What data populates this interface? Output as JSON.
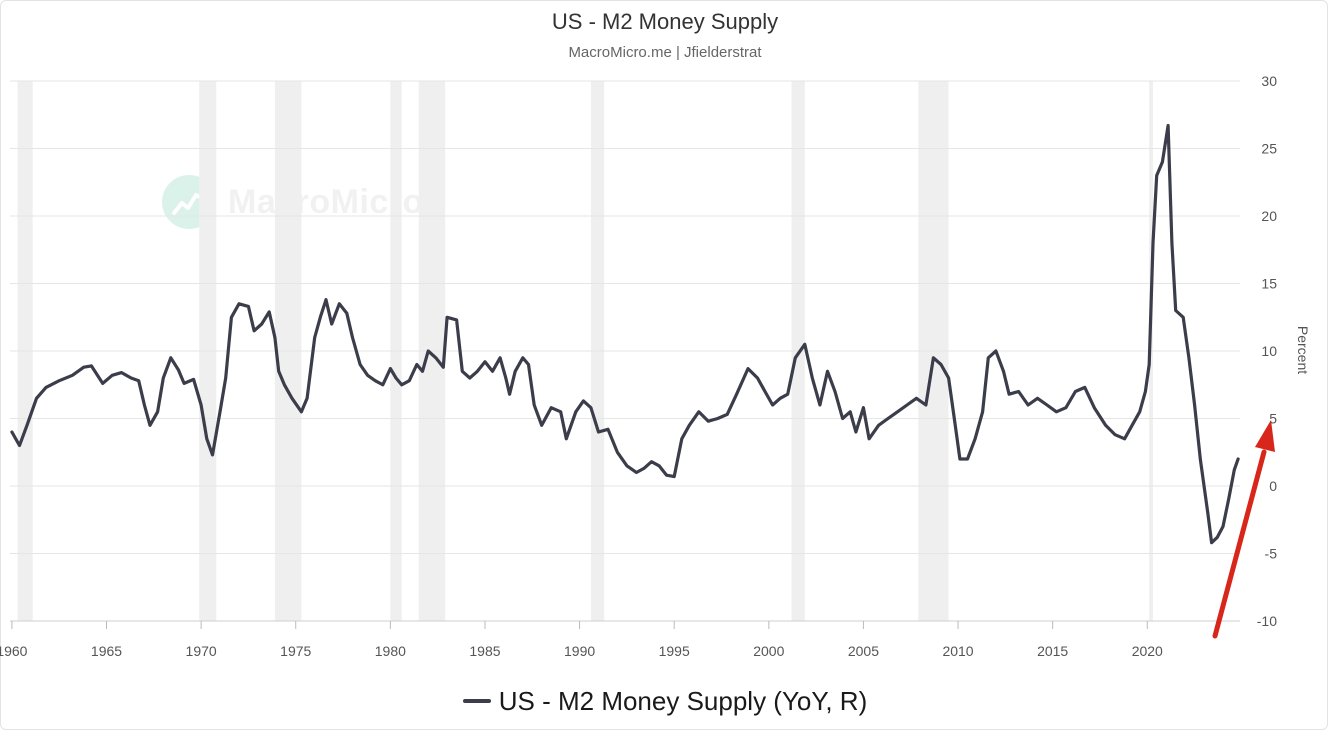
{
  "title": "US - M2 Money Supply",
  "subtitle": "MacroMicro.me | Jfielderstrat",
  "watermark": "MacroMicro",
  "legend_label": "US - M2 Money Supply (YoY, R)",
  "colors": {
    "line": "#3b3d4b",
    "recession": "#efefef",
    "grid": "#e6e6e6",
    "arrow": "#d8261b",
    "watermark_logo": "#bfe9dc"
  },
  "chart_data": {
    "type": "line",
    "title": "US - M2 Money Supply",
    "subtitle": "MacroMicro.me | Jfielderstrat",
    "ylabel": "Percent",
    "y_axis_side": "right",
    "xlim": [
      1959.9,
      2024.9
    ],
    "ylim": [
      -10,
      30
    ],
    "x_ticks": [
      1960,
      1965,
      1970,
      1975,
      1980,
      1985,
      1990,
      1995,
      2000,
      2005,
      2010,
      2015,
      2020
    ],
    "y_ticks": [
      -10,
      -5,
      0,
      5,
      10,
      15,
      20,
      25,
      30
    ],
    "grid": "horizontal",
    "legend_position": "bottom-center",
    "recessions": [
      [
        1960.3,
        1961.1
      ],
      [
        1969.9,
        1970.8
      ],
      [
        1973.9,
        1975.3
      ],
      [
        1980.0,
        1980.6
      ],
      [
        1981.5,
        1982.9
      ],
      [
        1990.6,
        1991.3
      ],
      [
        2001.2,
        2001.9
      ],
      [
        2007.9,
        2009.5
      ],
      [
        2020.1,
        2020.3
      ]
    ],
    "series": [
      {
        "name": "US - M2 Money Supply (YoY, R)",
        "axis": "right",
        "points": [
          [
            1960.0,
            4.0
          ],
          [
            1960.4,
            3.0
          ],
          [
            1960.8,
            4.5
          ],
          [
            1961.3,
            6.5
          ],
          [
            1961.8,
            7.3
          ],
          [
            1962.5,
            7.8
          ],
          [
            1963.2,
            8.2
          ],
          [
            1963.8,
            8.8
          ],
          [
            1964.2,
            8.9
          ],
          [
            1964.8,
            7.6
          ],
          [
            1965.3,
            8.2
          ],
          [
            1965.8,
            8.4
          ],
          [
            1966.3,
            8.0
          ],
          [
            1966.7,
            7.8
          ],
          [
            1967.0,
            6.0
          ],
          [
            1967.3,
            4.5
          ],
          [
            1967.7,
            5.5
          ],
          [
            1968.0,
            8.0
          ],
          [
            1968.4,
            9.5
          ],
          [
            1968.8,
            8.6
          ],
          [
            1969.1,
            7.6
          ],
          [
            1969.6,
            7.9
          ],
          [
            1970.0,
            6.0
          ],
          [
            1970.3,
            3.5
          ],
          [
            1970.6,
            2.3
          ],
          [
            1971.0,
            5.5
          ],
          [
            1971.3,
            8.0
          ],
          [
            1971.6,
            12.5
          ],
          [
            1972.0,
            13.5
          ],
          [
            1972.5,
            13.3
          ],
          [
            1972.8,
            11.5
          ],
          [
            1973.2,
            12.0
          ],
          [
            1973.6,
            12.9
          ],
          [
            1973.9,
            11.0
          ],
          [
            1974.1,
            8.5
          ],
          [
            1974.4,
            7.5
          ],
          [
            1974.8,
            6.5
          ],
          [
            1975.3,
            5.5
          ],
          [
            1975.6,
            6.5
          ],
          [
            1976.0,
            11.0
          ],
          [
            1976.3,
            12.5
          ],
          [
            1976.6,
            13.8
          ],
          [
            1976.9,
            12.0
          ],
          [
            1977.3,
            13.5
          ],
          [
            1977.7,
            12.8
          ],
          [
            1978.0,
            11.0
          ],
          [
            1978.4,
            9.0
          ],
          [
            1978.8,
            8.2
          ],
          [
            1979.2,
            7.8
          ],
          [
            1979.6,
            7.5
          ],
          [
            1980.0,
            8.7
          ],
          [
            1980.3,
            8.0
          ],
          [
            1980.6,
            7.5
          ],
          [
            1981.0,
            7.8
          ],
          [
            1981.4,
            9.0
          ],
          [
            1981.7,
            8.5
          ],
          [
            1982.0,
            10.0
          ],
          [
            1982.4,
            9.5
          ],
          [
            1982.8,
            8.8
          ],
          [
            1983.0,
            12.5
          ],
          [
            1983.5,
            12.3
          ],
          [
            1983.8,
            8.5
          ],
          [
            1984.2,
            8.0
          ],
          [
            1984.6,
            8.5
          ],
          [
            1985.0,
            9.2
          ],
          [
            1985.4,
            8.5
          ],
          [
            1985.8,
            9.5
          ],
          [
            1986.1,
            8.0
          ],
          [
            1986.3,
            6.8
          ],
          [
            1986.6,
            8.5
          ],
          [
            1987.0,
            9.5
          ],
          [
            1987.3,
            9.0
          ],
          [
            1987.6,
            6.0
          ],
          [
            1988.0,
            4.5
          ],
          [
            1988.5,
            5.8
          ],
          [
            1989.0,
            5.5
          ],
          [
            1989.3,
            3.5
          ],
          [
            1989.8,
            5.5
          ],
          [
            1990.2,
            6.3
          ],
          [
            1990.6,
            5.8
          ],
          [
            1991.0,
            4.0
          ],
          [
            1991.5,
            4.2
          ],
          [
            1992.0,
            2.5
          ],
          [
            1992.5,
            1.5
          ],
          [
            1993.0,
            1.0
          ],
          [
            1993.4,
            1.3
          ],
          [
            1993.8,
            1.8
          ],
          [
            1994.2,
            1.5
          ],
          [
            1994.6,
            0.8
          ],
          [
            1995.0,
            0.7
          ],
          [
            1995.4,
            3.5
          ],
          [
            1995.8,
            4.5
          ],
          [
            1996.3,
            5.5
          ],
          [
            1996.8,
            4.8
          ],
          [
            1997.3,
            5.0
          ],
          [
            1997.8,
            5.3
          ],
          [
            1998.3,
            6.8
          ],
          [
            1998.9,
            8.7
          ],
          [
            1999.4,
            8.0
          ],
          [
            1999.8,
            7.0
          ],
          [
            2000.2,
            6.0
          ],
          [
            2000.6,
            6.5
          ],
          [
            2001.0,
            6.8
          ],
          [
            2001.4,
            9.5
          ],
          [
            2001.9,
            10.5
          ],
          [
            2002.3,
            8.0
          ],
          [
            2002.7,
            6.0
          ],
          [
            2003.1,
            8.5
          ],
          [
            2003.5,
            7.0
          ],
          [
            2003.9,
            5.0
          ],
          [
            2004.3,
            5.5
          ],
          [
            2004.6,
            4.0
          ],
          [
            2005.0,
            5.8
          ],
          [
            2005.3,
            3.5
          ],
          [
            2005.8,
            4.5
          ],
          [
            2006.3,
            5.0
          ],
          [
            2006.8,
            5.5
          ],
          [
            2007.3,
            6.0
          ],
          [
            2007.8,
            6.5
          ],
          [
            2008.3,
            6.0
          ],
          [
            2008.7,
            9.5
          ],
          [
            2009.1,
            9.0
          ],
          [
            2009.5,
            8.0
          ],
          [
            2009.8,
            5.0
          ],
          [
            2010.1,
            2.0
          ],
          [
            2010.5,
            2.0
          ],
          [
            2010.9,
            3.5
          ],
          [
            2011.3,
            5.5
          ],
          [
            2011.6,
            9.5
          ],
          [
            2012.0,
            10.0
          ],
          [
            2012.4,
            8.5
          ],
          [
            2012.7,
            6.8
          ],
          [
            2013.2,
            7.0
          ],
          [
            2013.7,
            6.0
          ],
          [
            2014.2,
            6.5
          ],
          [
            2014.7,
            6.0
          ],
          [
            2015.2,
            5.5
          ],
          [
            2015.7,
            5.8
          ],
          [
            2016.2,
            7.0
          ],
          [
            2016.7,
            7.3
          ],
          [
            2017.2,
            5.8
          ],
          [
            2017.8,
            4.5
          ],
          [
            2018.3,
            3.8
          ],
          [
            2018.8,
            3.5
          ],
          [
            2019.2,
            4.5
          ],
          [
            2019.6,
            5.5
          ],
          [
            2019.9,
            7.0
          ],
          [
            2020.1,
            9.0
          ],
          [
            2020.3,
            18.0
          ],
          [
            2020.5,
            23.0
          ],
          [
            2020.8,
            24.0
          ],
          [
            2021.1,
            26.7
          ],
          [
            2021.3,
            18.0
          ],
          [
            2021.5,
            13.0
          ],
          [
            2021.9,
            12.5
          ],
          [
            2022.2,
            9.5
          ],
          [
            2022.5,
            6.0
          ],
          [
            2022.8,
            2.0
          ],
          [
            2023.2,
            -2.0
          ],
          [
            2023.4,
            -4.2
          ],
          [
            2023.7,
            -3.8
          ],
          [
            2024.0,
            -3.0
          ],
          [
            2024.3,
            -1.0
          ],
          [
            2024.6,
            1.2
          ],
          [
            2024.8,
            2.0
          ]
        ]
      }
    ]
  }
}
